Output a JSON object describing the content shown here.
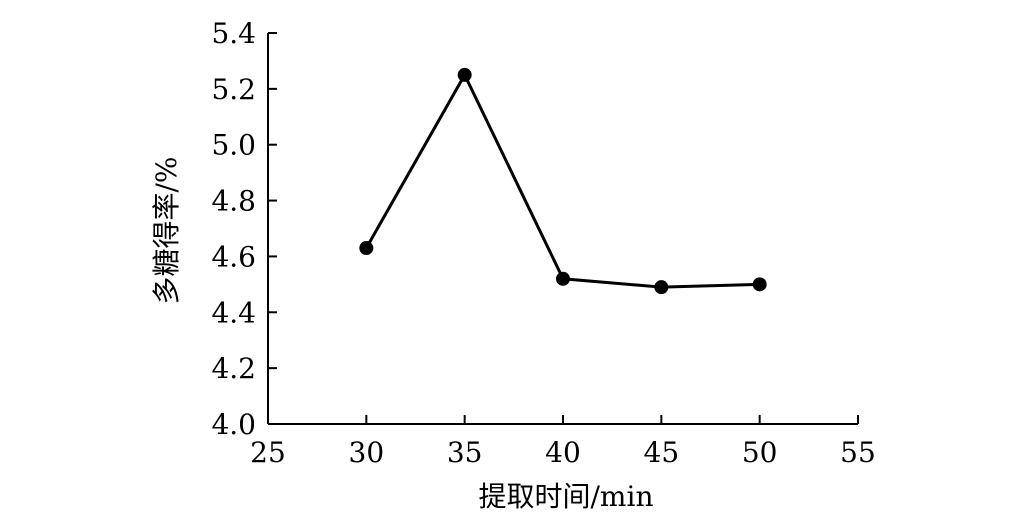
{
  "chart_data": {
    "type": "line",
    "title": "",
    "xlabel": "提取时间/min",
    "ylabel": "多糖得率/%",
    "xlim": [
      25,
      55
    ],
    "ylim": [
      4.0,
      5.4
    ],
    "xticks": [
      25,
      30,
      35,
      40,
      45,
      50,
      55
    ],
    "yticks": [
      4.0,
      4.2,
      4.4,
      4.6,
      4.8,
      5.0,
      5.2,
      5.4
    ],
    "ytick_labels": [
      "4.0",
      "4.2",
      "4.4",
      "4.6",
      "4.8",
      "5.0",
      "5.2",
      "5.4"
    ],
    "grid": false,
    "series": [
      {
        "x": [
          30,
          35,
          40,
          45,
          50
        ],
        "values": [
          4.63,
          5.25,
          4.52,
          4.49,
          4.5
        ],
        "color": "#000000",
        "marker": "circle"
      }
    ]
  }
}
